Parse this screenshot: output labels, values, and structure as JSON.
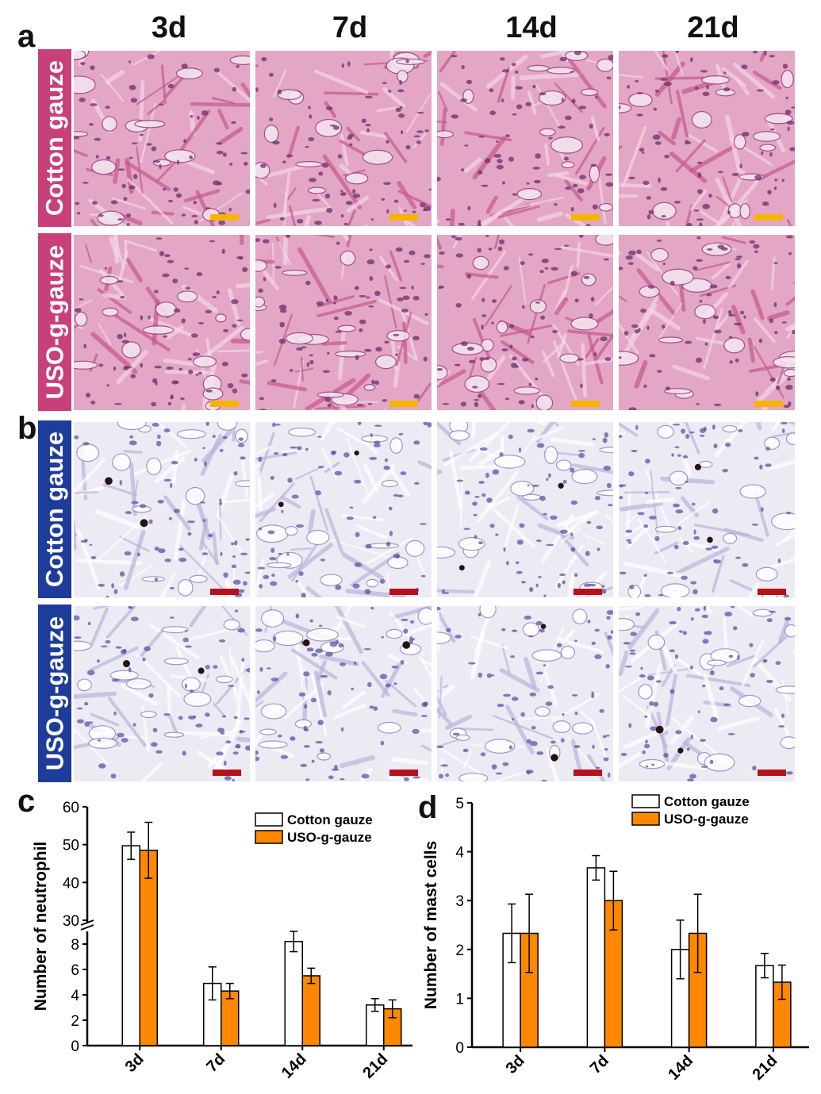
{
  "panel_labels": [
    "a",
    "b",
    "c",
    "d"
  ],
  "timepoints": [
    "3d",
    "7d",
    "14d",
    "21d"
  ],
  "groups": [
    "Cotton gauze",
    "USO-g-gauze"
  ],
  "colors": {
    "he_label_bg": "#c8407a",
    "he_tissue_base": "#e3a6c4",
    "he_cell": "#6b2d72",
    "tb_label_bg": "#1e3c9a",
    "tb_tissue_base": "#eceaf3",
    "tb_cell": "#5a56a8",
    "he_scalebar": "#f5b400",
    "tb_scalebar": "#b5121b",
    "cotton_bar": "#ffffff",
    "uso_bar": "#ff8800"
  },
  "icons": {
    "axis_break": "double-slash-break-icon"
  },
  "chart_data": [
    {
      "type": "bar",
      "panel": "c",
      "categories": [
        "3d",
        "7d",
        "14d",
        "21d"
      ],
      "ylabel": "Number of neutrophil",
      "xlabel": "",
      "axis_break": [
        9,
        30
      ],
      "lower_ticks": [
        0,
        2,
        4,
        6,
        8
      ],
      "upper_ticks": [
        30,
        40,
        50,
        60
      ],
      "ylim": [
        0,
        60
      ],
      "legend_position": "top-right",
      "series": [
        {
          "name": "Cotton gauze",
          "values": [
            49.7,
            4.9,
            8.2,
            3.2
          ],
          "errors": [
            3.6,
            1.3,
            0.8,
            0.5
          ]
        },
        {
          "name": "USO-g-gauze",
          "values": [
            48.5,
            4.3,
            5.5,
            2.9
          ],
          "errors": [
            7.4,
            0.6,
            0.6,
            0.7
          ]
        }
      ]
    },
    {
      "type": "bar",
      "panel": "d",
      "categories": [
        "3d",
        "7d",
        "14d",
        "21d"
      ],
      "ylabel": "Number of mast cells",
      "xlabel": "",
      "ticks": [
        0,
        1,
        2,
        3,
        4,
        5
      ],
      "ylim": [
        0,
        5
      ],
      "legend_position": "top-right",
      "series": [
        {
          "name": "Cotton gauze",
          "values": [
            2.33,
            3.67,
            2.0,
            1.67
          ],
          "errors": [
            0.6,
            0.25,
            0.6,
            0.25
          ]
        },
        {
          "name": "USO-g-gauze",
          "values": [
            2.33,
            3.0,
            2.33,
            1.33
          ],
          "errors": [
            0.8,
            0.6,
            0.8,
            0.35
          ]
        }
      ]
    }
  ]
}
